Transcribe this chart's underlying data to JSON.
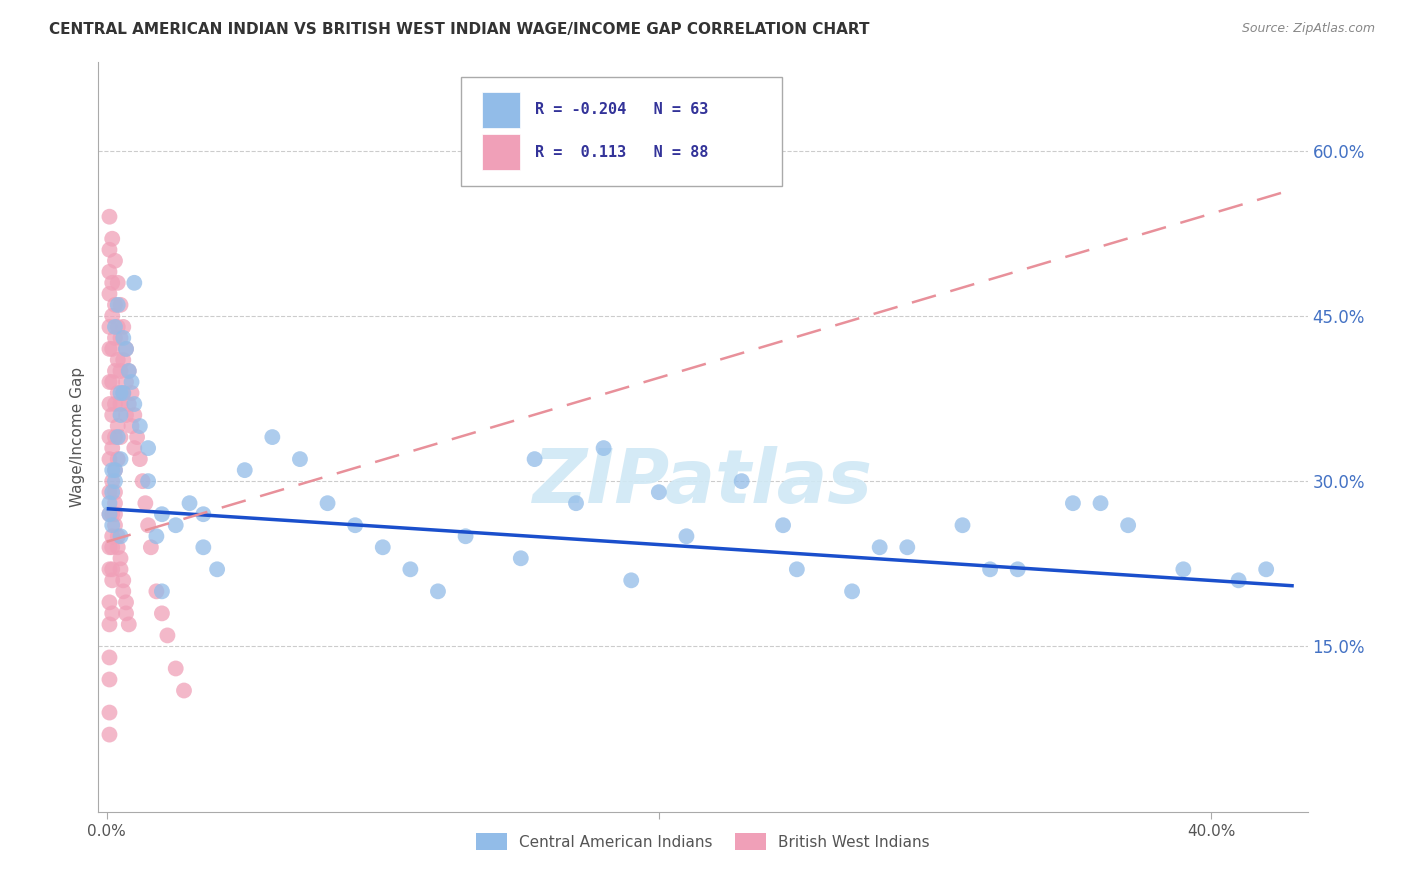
{
  "title": "CENTRAL AMERICAN INDIAN VS BRITISH WEST INDIAN WAGE/INCOME GAP CORRELATION CHART",
  "source": "Source: ZipAtlas.com",
  "ylabel": "Wage/Income Gap",
  "right_ytick_labels": [
    "60.0%",
    "45.0%",
    "30.0%",
    "15.0%"
  ],
  "right_ytick_values": [
    0.6,
    0.45,
    0.3,
    0.15
  ],
  "xmin": -0.003,
  "xmax": 0.435,
  "ymin": 0.0,
  "ymax": 0.68,
  "series1_name": "Central American Indians",
  "series1_R": -0.204,
  "series1_N": 63,
  "series1_color": "#92bce8",
  "series2_name": "British West Indians",
  "series2_R": 0.113,
  "series2_N": 88,
  "series2_color": "#f0a0b8",
  "trend1_color": "#1a4fcc",
  "trend2_color": "#e8909a",
  "watermark_color": "#d0e8f5",
  "background_color": "#ffffff",
  "grid_color": "#cccccc",
  "title_fontsize": 11,
  "source_fontsize": 9,
  "series1_x": [
    0.001,
    0.003,
    0.005,
    0.001,
    0.002,
    0.004,
    0.002,
    0.003,
    0.006,
    0.005,
    0.008,
    0.01,
    0.007,
    0.009,
    0.003,
    0.004,
    0.006,
    0.012,
    0.015,
    0.01,
    0.002,
    0.005,
    0.018,
    0.02,
    0.015,
    0.025,
    0.03,
    0.035,
    0.04,
    0.05,
    0.06,
    0.07,
    0.08,
    0.09,
    0.1,
    0.11,
    0.12,
    0.13,
    0.15,
    0.17,
    0.19,
    0.21,
    0.23,
    0.25,
    0.27,
    0.29,
    0.31,
    0.33,
    0.35,
    0.37,
    0.39,
    0.41,
    0.42,
    0.18,
    0.2,
    0.28,
    0.32,
    0.36,
    0.155,
    0.245,
    0.005,
    0.02,
    0.035
  ],
  "series1_y": [
    0.27,
    0.3,
    0.32,
    0.28,
    0.26,
    0.34,
    0.29,
    0.31,
    0.38,
    0.36,
    0.4,
    0.37,
    0.42,
    0.39,
    0.44,
    0.46,
    0.43,
    0.35,
    0.33,
    0.48,
    0.31,
    0.38,
    0.25,
    0.27,
    0.3,
    0.26,
    0.28,
    0.24,
    0.22,
    0.31,
    0.34,
    0.32,
    0.28,
    0.26,
    0.24,
    0.22,
    0.2,
    0.25,
    0.23,
    0.28,
    0.21,
    0.25,
    0.3,
    0.22,
    0.2,
    0.24,
    0.26,
    0.22,
    0.28,
    0.26,
    0.22,
    0.21,
    0.22,
    0.33,
    0.29,
    0.24,
    0.22,
    0.28,
    0.32,
    0.26,
    0.25,
    0.2,
    0.27
  ],
  "series2_x": [
    0.001,
    0.001,
    0.001,
    0.001,
    0.001,
    0.001,
    0.001,
    0.001,
    0.001,
    0.001,
    0.001,
    0.001,
    0.001,
    0.001,
    0.001,
    0.001,
    0.001,
    0.001,
    0.001,
    0.001,
    0.002,
    0.002,
    0.002,
    0.002,
    0.002,
    0.002,
    0.002,
    0.002,
    0.002,
    0.002,
    0.002,
    0.002,
    0.003,
    0.003,
    0.003,
    0.003,
    0.003,
    0.003,
    0.003,
    0.003,
    0.004,
    0.004,
    0.004,
    0.004,
    0.004,
    0.004,
    0.005,
    0.005,
    0.005,
    0.005,
    0.005,
    0.006,
    0.006,
    0.006,
    0.007,
    0.007,
    0.007,
    0.008,
    0.008,
    0.009,
    0.009,
    0.01,
    0.01,
    0.011,
    0.012,
    0.013,
    0.014,
    0.015,
    0.016,
    0.018,
    0.02,
    0.022,
    0.025,
    0.028,
    0.003,
    0.003,
    0.004,
    0.005,
    0.006,
    0.007,
    0.002,
    0.002,
    0.003,
    0.004,
    0.005,
    0.006,
    0.007,
    0.008
  ],
  "series2_y": [
    0.54,
    0.51,
    0.49,
    0.47,
    0.44,
    0.42,
    0.39,
    0.37,
    0.34,
    0.32,
    0.29,
    0.27,
    0.24,
    0.22,
    0.19,
    0.17,
    0.14,
    0.12,
    0.09,
    0.07,
    0.52,
    0.48,
    0.45,
    0.42,
    0.39,
    0.36,
    0.33,
    0.3,
    0.27,
    0.24,
    0.21,
    0.18,
    0.5,
    0.46,
    0.43,
    0.4,
    0.37,
    0.34,
    0.31,
    0.28,
    0.48,
    0.44,
    0.41,
    0.38,
    0.35,
    0.32,
    0.46,
    0.43,
    0.4,
    0.37,
    0.34,
    0.44,
    0.41,
    0.38,
    0.42,
    0.39,
    0.36,
    0.4,
    0.37,
    0.38,
    0.35,
    0.36,
    0.33,
    0.34,
    0.32,
    0.3,
    0.28,
    0.26,
    0.24,
    0.2,
    0.18,
    0.16,
    0.13,
    0.11,
    0.29,
    0.26,
    0.24,
    0.22,
    0.2,
    0.18,
    0.25,
    0.22,
    0.27,
    0.25,
    0.23,
    0.21,
    0.19,
    0.17
  ],
  "trend1_x0": 0.0,
  "trend1_x1": 0.43,
  "trend1_y0": 0.275,
  "trend1_y1": 0.205,
  "trend2_x0": 0.0,
  "trend2_x1": 0.43,
  "trend2_y0": 0.245,
  "trend2_y1": 0.565
}
